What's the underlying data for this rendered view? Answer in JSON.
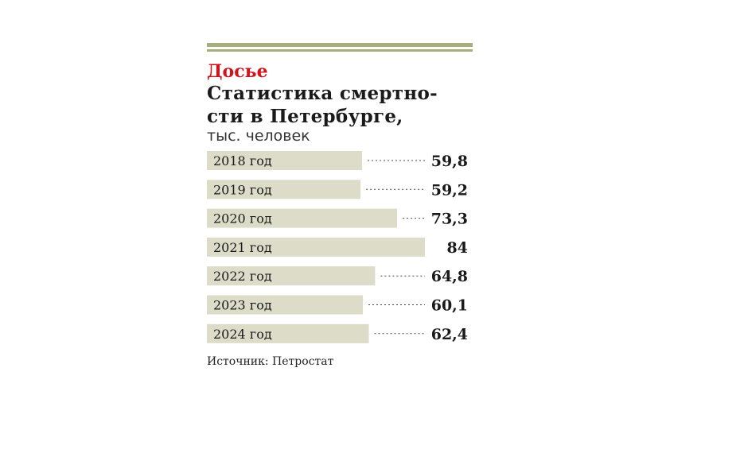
{
  "header": {
    "kicker": "Досье",
    "title_line1": "Статистика смертно-",
    "title_line2": "сти в Петербурге,",
    "units": "тыс. человек"
  },
  "colors": {
    "rule": "#a7ad7d",
    "bar": "#dcdcc9",
    "kicker": "#d1141c",
    "text": "#1a1a1a"
  },
  "chart_data": {
    "type": "bar",
    "orientation": "horizontal",
    "categories": [
      "2018 год",
      "2019 год",
      "2020 год",
      "2021 год",
      "2022 год",
      "2023 год",
      "2024 год"
    ],
    "values": [
      59.8,
      59.2,
      73.3,
      84,
      64.8,
      60.1,
      62.4
    ],
    "value_labels": [
      "59,8",
      "59,2",
      "73,3",
      "84",
      "64,8",
      "60,1",
      "62,4"
    ],
    "title": "Статистика смертности в Петербурге,",
    "units": "тыс. человек",
    "leader_lines": true,
    "grid": false
  },
  "footer": {
    "source": "Источник: Петростат"
  }
}
